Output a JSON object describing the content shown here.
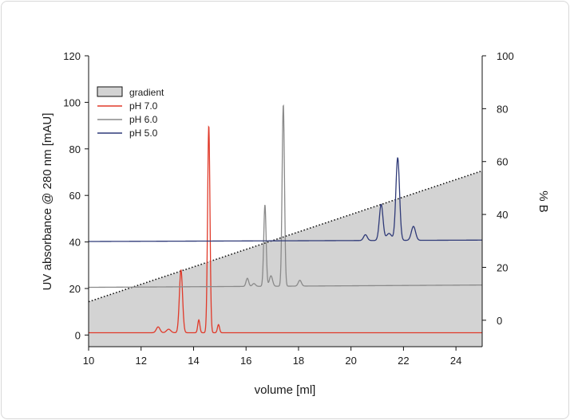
{
  "chart_data": {
    "type": "line",
    "xlabel": "volume [ml]",
    "ylabel": "UV absorbance @ 280 nm [mAU]",
    "y2label": "% B",
    "xlim": [
      10,
      25
    ],
    "ylim": [
      -5,
      120
    ],
    "y2lim": [
      -10,
      100
    ],
    "x_ticks": [
      10,
      12,
      14,
      16,
      18,
      20,
      22,
      24
    ],
    "y_ticks": [
      0,
      20,
      40,
      60,
      80,
      100,
      120
    ],
    "y2_ticks": [
      0,
      20,
      40,
      60,
      80,
      100
    ],
    "grid": false,
    "legend_position": "top-left",
    "legend": [
      {
        "label": "gradient",
        "kind": "box",
        "color": "#d3d3d3"
      },
      {
        "label": "pH 7.0",
        "kind": "line",
        "color": "#e03a2a"
      },
      {
        "label": "pH 6.0",
        "kind": "line",
        "color": "#8a8a8a"
      },
      {
        "label": "pH 5.0",
        "kind": "line",
        "color": "#2f3a78"
      }
    ],
    "gradient": {
      "axis": "y2",
      "style": "dotted-edge-filled",
      "color": "#d3d3d3",
      "points": [
        [
          10,
          7
        ],
        [
          25,
          56.5
        ]
      ]
    },
    "series": [
      {
        "label": "pH 7.0",
        "color": "#e03a2a",
        "baseline": 1,
        "peaks": [
          {
            "x": 12.65,
            "height": 2.5,
            "width": 0.07
          },
          {
            "x": 13.05,
            "height": 1.5,
            "width": 0.08
          },
          {
            "x": 13.52,
            "height": 27,
            "width": 0.06
          },
          {
            "x": 14.2,
            "height": 5.5,
            "width": 0.04
          },
          {
            "x": 14.58,
            "height": 89,
            "width": 0.045
          },
          {
            "x": 14.95,
            "height": 3.5,
            "width": 0.04
          }
        ]
      },
      {
        "label": "pH 6.0",
        "color": "#8a8a8a",
        "baseline": 20.5,
        "end_value": 21.5,
        "peaks": [
          {
            "x": 16.05,
            "height": 3.5,
            "width": 0.05
          },
          {
            "x": 16.3,
            "height": 1.2,
            "width": 0.06
          },
          {
            "x": 16.72,
            "height": 35,
            "width": 0.045
          },
          {
            "x": 16.95,
            "height": 4.5,
            "width": 0.06
          },
          {
            "x": 17.42,
            "height": 78,
            "width": 0.045
          },
          {
            "x": 18.05,
            "height": 2.5,
            "width": 0.06
          }
        ]
      },
      {
        "label": "pH 5.0",
        "color": "#2f3a78",
        "baseline": 40.2,
        "end_value": 40.8,
        "peaks": [
          {
            "x": 20.55,
            "height": 2.5,
            "width": 0.07
          },
          {
            "x": 21.15,
            "height": 15.5,
            "width": 0.07
          },
          {
            "x": 21.45,
            "height": 3,
            "width": 0.1
          },
          {
            "x": 21.78,
            "height": 35.5,
            "width": 0.07
          },
          {
            "x": 22.38,
            "height": 6,
            "width": 0.08
          }
        ]
      }
    ]
  }
}
